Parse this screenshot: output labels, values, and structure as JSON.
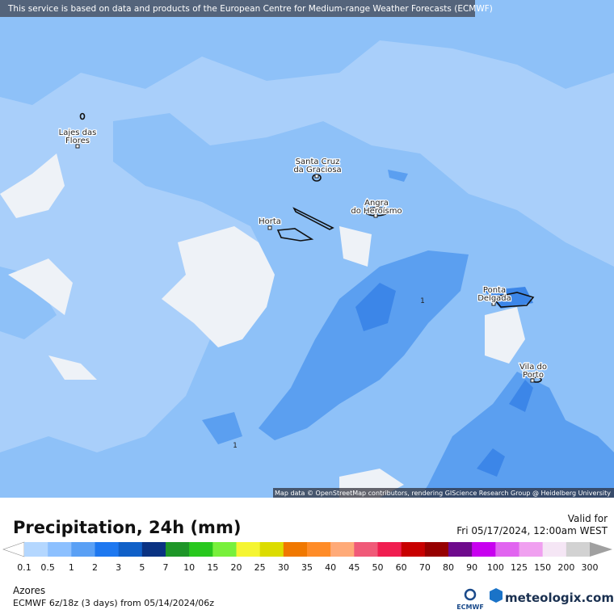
{
  "map": {
    "source_notice": "This service is based on data and products of the European Centre for Medium-range Weather Forecasts (ECMWF)",
    "places": [
      {
        "lines": [
          "Lajes das",
          "Flores"
        ]
      },
      {
        "lines": [
          "Santa Cruz",
          "da Graciosa"
        ]
      },
      {
        "lines": [
          "Angra",
          "do Heroísmo"
        ]
      },
      {
        "lines": [
          "Horta"
        ]
      },
      {
        "lines": [
          "Ponta",
          "Delgada"
        ]
      },
      {
        "lines": [
          "Vila do",
          "Porto"
        ]
      }
    ],
    "contour_labels": [
      1,
      1
    ],
    "attribution": "Map data © OpenStreetMap contributors, rendering GIScience Research Group @ Heidelberg University"
  },
  "legend": {
    "title": "Precipitation, 24h (mm)",
    "valid_label": "Valid for",
    "valid_time": "Fri 05/17/2024, 12:00am WEST",
    "labels": [
      0.1,
      0.5,
      1,
      2,
      3,
      5,
      7,
      10,
      15,
      20,
      25,
      30,
      35,
      40,
      45,
      50,
      60,
      70,
      80,
      90,
      100,
      125,
      150,
      200,
      300
    ],
    "colors": [
      "#b4d7ff",
      "#8cc0ff",
      "#5aa0f5",
      "#1e78f0",
      "#1060c8",
      "#0a3282",
      "#1e9628",
      "#28c81e",
      "#78f03c",
      "#f5f532",
      "#dcdc00",
      "#f07800",
      "#ff8c28",
      "#ffaa78",
      "#f05a78",
      "#f01e50",
      "#c80000",
      "#960000",
      "#6e0a8c",
      "#c800f0",
      "#e164f0",
      "#f0a0f0",
      "#f5e6f5",
      "#d2d2d2"
    ],
    "under_color": "#ffffff",
    "over_color": "#a0a0a0"
  },
  "footer": {
    "region": "Azores",
    "model_run": "ECMWF 6z/18z (3 days) from 05/14/2024/06z",
    "ecmwf_logo": "ECMWF",
    "brand": "meteologix.com"
  }
}
